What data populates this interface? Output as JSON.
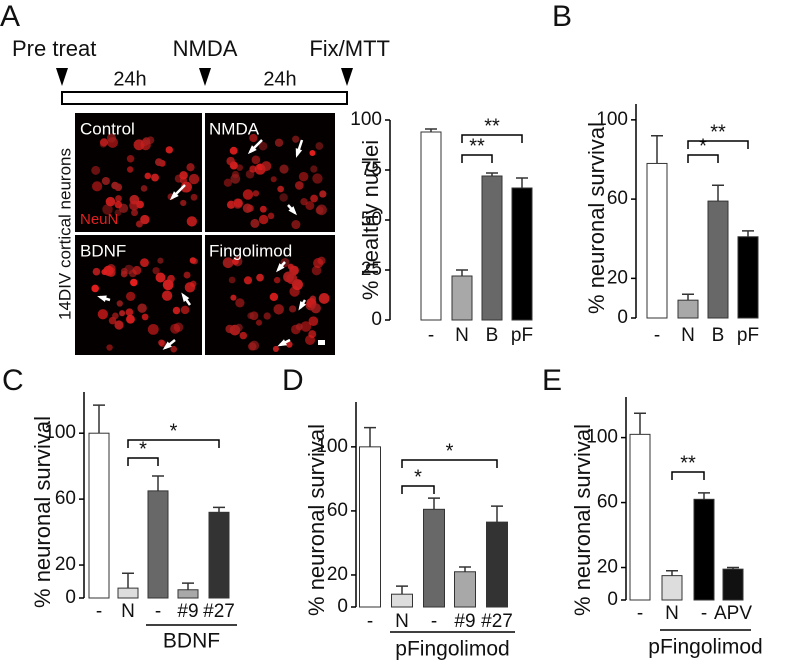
{
  "timeline": {
    "events": [
      "Pre treat",
      "NMDA",
      "Fix/MTT"
    ],
    "intervals": [
      "24h",
      "24h"
    ]
  },
  "micrograph": {
    "side_label": "14DIV cortical neurons",
    "quadrants": [
      "Control",
      "NMDA",
      "BDNF",
      "Fingolimod"
    ],
    "stain": "NeuN"
  },
  "chart_data": [
    {
      "type": "bar",
      "panel": "A",
      "y_label": "% healthy nuclei",
      "categories": [
        "-",
        "N",
        "B",
        "pF"
      ],
      "values": [
        94,
        22,
        72,
        66
      ],
      "errors": [
        1.5,
        3,
        1.5,
        5
      ],
      "colors": [
        "#ffffff",
        "#a8a8a8",
        "#686868",
        "#000000"
      ],
      "ylim": [
        0,
        100
      ],
      "yticks": [
        0,
        25,
        50,
        75,
        100
      ],
      "annotations": [
        "**",
        "**"
      ]
    },
    {
      "type": "bar",
      "panel": "B",
      "y_label": "% neuronal survival",
      "categories": [
        "-",
        "N",
        "B",
        "pF"
      ],
      "values": [
        78,
        9,
        59,
        41
      ],
      "errors": [
        14,
        3,
        8,
        3
      ],
      "colors": [
        "#ffffff",
        "#a8a8a8",
        "#686868",
        "#000000"
      ],
      "ylim": [
        0,
        108
      ],
      "yticks": [
        0,
        20,
        60,
        100
      ],
      "annotations": [
        "*",
        "**"
      ]
    },
    {
      "type": "bar",
      "panel": "C",
      "y_label": "% neuronal survival",
      "categories": [
        "-",
        "N",
        "-",
        "#9",
        "#27"
      ],
      "values": [
        100,
        6,
        65,
        5,
        52
      ],
      "errors": [
        17,
        9,
        9,
        4,
        3
      ],
      "colors": [
        "#ffffff",
        "#dddddd",
        "#686868",
        "#a8a8a8",
        "#333333"
      ],
      "ylim": [
        0,
        125
      ],
      "yticks": [
        0,
        20,
        60,
        100
      ],
      "annotations": [
        "*",
        "*"
      ],
      "group_label": "BDNF"
    },
    {
      "type": "bar",
      "panel": "D",
      "y_label": "% neuronal survival",
      "categories": [
        "-",
        "N",
        "-",
        "#9",
        "#27"
      ],
      "values": [
        100,
        8,
        61,
        22,
        53
      ],
      "errors": [
        12,
        5,
        7,
        3,
        10
      ],
      "colors": [
        "#ffffff",
        "#dddddd",
        "#686868",
        "#a8a8a8",
        "#333333"
      ],
      "ylim": [
        0,
        128
      ],
      "yticks": [
        0,
        20,
        60,
        100
      ],
      "annotations": [
        "*",
        "*"
      ],
      "group_label": "pFingolimod"
    },
    {
      "type": "bar",
      "panel": "E",
      "y_label": "% neuronal survival",
      "categories": [
        "-",
        "N",
        "-",
        "APV"
      ],
      "values": [
        102,
        15,
        62,
        19
      ],
      "errors": [
        13,
        3,
        4,
        1
      ],
      "colors": [
        "#ffffff",
        "#dddddd",
        "#000000",
        "#111111"
      ],
      "ylim": [
        0,
        125
      ],
      "yticks": [
        0,
        20,
        60,
        100
      ],
      "annotations": [
        "**"
      ],
      "group_label": "pFingolimod"
    }
  ]
}
